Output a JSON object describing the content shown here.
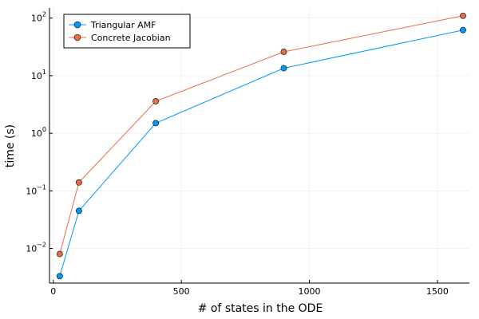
{
  "chart_data": {
    "type": "line",
    "xlabel": "# of states in the ODE",
    "ylabel": "time (s)",
    "xlim": [
      -15,
      1625
    ],
    "ylim": [
      0.0025,
      150
    ],
    "yscale": "log",
    "grid": true,
    "legend_position": "top-left",
    "x_ticks": [
      0,
      500,
      1000,
      1500
    ],
    "y_ticks": [
      {
        "value": 0.01,
        "base": "10",
        "exp": "−2"
      },
      {
        "value": 0.1,
        "base": "10",
        "exp": "−1"
      },
      {
        "value": 1,
        "base": "10",
        "exp": "0"
      },
      {
        "value": 10,
        "base": "10",
        "exp": "1"
      },
      {
        "value": 100,
        "base": "10",
        "exp": "2"
      }
    ],
    "series": [
      {
        "name": "Triangular AMF",
        "color": "#009AFA",
        "x": [
          25,
          100,
          400,
          900,
          1600
        ],
        "y": [
          0.0033,
          0.045,
          1.5,
          13.5,
          62
        ]
      },
      {
        "name": "Concrete Jacobian",
        "color": "#E36F47",
        "x": [
          25,
          100,
          400,
          900,
          1600
        ],
        "y": [
          0.008,
          0.14,
          3.6,
          26,
          110
        ]
      }
    ]
  }
}
